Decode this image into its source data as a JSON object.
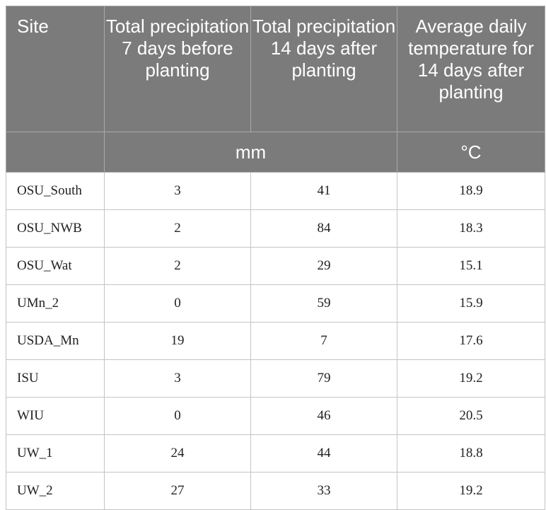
{
  "table": {
    "headers": [
      "Site",
      "Total precipitation 7 days before planting",
      "Total precipitation 14 days after planting",
      "Average daily temperature for 14 days after planting"
    ],
    "units": {
      "precipitation": "mm",
      "temperature": "°C"
    },
    "rows": [
      [
        "OSU_South",
        "3",
        "41",
        "18.9"
      ],
      [
        "OSU_NWB",
        "2",
        "84",
        "18.3"
      ],
      [
        "OSU_Wat",
        "2",
        "29",
        "15.1"
      ],
      [
        "UMn_2",
        "0",
        "59",
        "15.9"
      ],
      [
        "USDA_Mn",
        "19",
        "7",
        "17.6"
      ],
      [
        "ISU",
        "3",
        "79",
        "19.2"
      ],
      [
        "WIU",
        "0",
        "46",
        "20.5"
      ],
      [
        "UW_1",
        "24",
        "44",
        "18.8"
      ],
      [
        "UW_2",
        "27",
        "33",
        "19.2"
      ]
    ]
  }
}
